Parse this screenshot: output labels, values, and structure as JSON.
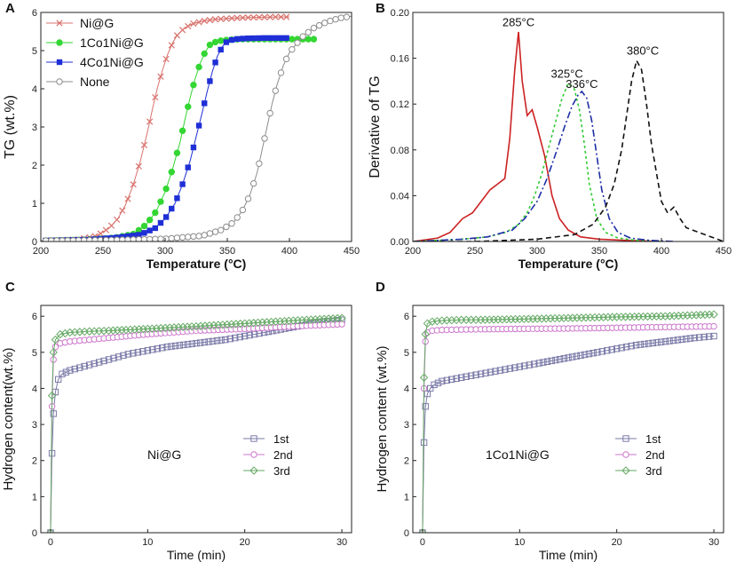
{
  "panels": [
    {
      "letter": "A",
      "type": "line",
      "xlabel": "Temperature (°C)",
      "ylabel": "TG (wt.%)",
      "xlim": [
        200,
        450
      ],
      "ylim": [
        0,
        6
      ],
      "xticks": [
        "200",
        "250",
        "300",
        "350",
        "400",
        "450"
      ],
      "yticks": [
        "0",
        "1",
        "2",
        "3",
        "4",
        "5",
        "6"
      ],
      "legend": {
        "position": "top-left"
      },
      "series": [
        {
          "name": "Ni@G",
          "color": "#d9736e",
          "marker": "x",
          "dash": "",
          "x": [
            200,
            230,
            245,
            255,
            262,
            268,
            274,
            280,
            286,
            290,
            294,
            298,
            302,
            306,
            310,
            316,
            322,
            330,
            340,
            355,
            370,
            390,
            400
          ],
          "y": [
            0.02,
            0.05,
            0.15,
            0.35,
            0.6,
            0.95,
            1.45,
            2.1,
            2.9,
            3.5,
            4.05,
            4.5,
            4.9,
            5.2,
            5.42,
            5.6,
            5.7,
            5.77,
            5.82,
            5.85,
            5.87,
            5.88,
            5.88
          ]
        },
        {
          "name": "1Co1Ni@G",
          "color": "#33d633",
          "marker": "circle",
          "dash": "",
          "x": [
            200,
            240,
            260,
            275,
            285,
            293,
            300,
            306,
            312,
            316,
            320,
            324,
            328,
            332,
            336,
            342,
            350,
            360,
            370,
            385,
            400,
            420
          ],
          "y": [
            0.02,
            0.05,
            0.1,
            0.2,
            0.45,
            0.8,
            1.3,
            1.9,
            2.6,
            3.2,
            3.75,
            4.25,
            4.65,
            4.95,
            5.15,
            5.25,
            5.28,
            5.3,
            5.3,
            5.3,
            5.3,
            5.3
          ]
        },
        {
          "name": "4Co1Ni@G",
          "color": "#1f2fd6",
          "marker": "square",
          "dash": "",
          "x": [
            200,
            240,
            260,
            280,
            292,
            300,
            308,
            314,
            320,
            325,
            330,
            334,
            338,
            342,
            346,
            350,
            356,
            365,
            380,
            400
          ],
          "y": [
            0.02,
            0.05,
            0.1,
            0.18,
            0.35,
            0.6,
            1.0,
            1.5,
            2.1,
            2.75,
            3.4,
            3.95,
            4.45,
            4.85,
            5.1,
            5.25,
            5.3,
            5.32,
            5.33,
            5.33
          ]
        },
        {
          "name": "None",
          "color": "#8c8c8c",
          "marker": "open-circle",
          "dash": "",
          "x": [
            200,
            260,
            300,
            330,
            345,
            355,
            362,
            368,
            374,
            378,
            382,
            386,
            390,
            395,
            400,
            410,
            420,
            430,
            440,
            450
          ],
          "y": [
            0.02,
            0.04,
            0.07,
            0.15,
            0.3,
            0.5,
            0.8,
            1.2,
            1.8,
            2.4,
            3.0,
            3.6,
            4.1,
            4.6,
            4.95,
            5.35,
            5.6,
            5.75,
            5.85,
            5.9
          ]
        }
      ]
    },
    {
      "letter": "B",
      "type": "line",
      "xlabel": "Temperature (°C)",
      "ylabel": "Derivative of TG",
      "xlim": [
        200,
        450
      ],
      "ylim": [
        0,
        0.2
      ],
      "xticks": [
        "200",
        "250",
        "300",
        "350",
        "400",
        "450"
      ],
      "yticks": [
        "0.00",
        "0.04",
        "0.08",
        "0.12",
        "0.16",
        "0.20"
      ],
      "annotations": [
        {
          "text": "285°C",
          "x": 285,
          "y": 0.188
        },
        {
          "text": "325°C",
          "x": 324,
          "y": 0.143
        },
        {
          "text": "336°C",
          "x": 336,
          "y": 0.134
        },
        {
          "text": "380°C",
          "x": 385,
          "y": 0.163
        }
      ],
      "series": [
        {
          "name": "Ni@G",
          "color": "#cc2222",
          "dash": "",
          "x": [
            200,
            220,
            230,
            240,
            248,
            255,
            262,
            268,
            274,
            278,
            282,
            285,
            288,
            292,
            296,
            300,
            306,
            312,
            318,
            325,
            335,
            350,
            370,
            400
          ],
          "y": [
            0.0,
            0.003,
            0.008,
            0.02,
            0.025,
            0.035,
            0.045,
            0.05,
            0.055,
            0.09,
            0.15,
            0.183,
            0.14,
            0.11,
            0.115,
            0.1,
            0.075,
            0.04,
            0.02,
            0.01,
            0.004,
            0.002,
            0.001,
            0.0
          ]
        },
        {
          "name": "1Co1Ni@G",
          "color": "#33cc33",
          "dash": "3,3",
          "x": [
            200,
            240,
            260,
            275,
            285,
            292,
            298,
            304,
            310,
            315,
            320,
            325,
            330,
            334,
            338,
            342,
            348,
            355,
            365,
            380,
            400
          ],
          "y": [
            0.0,
            0.002,
            0.004,
            0.008,
            0.015,
            0.025,
            0.04,
            0.06,
            0.085,
            0.105,
            0.125,
            0.138,
            0.133,
            0.115,
            0.085,
            0.05,
            0.02,
            0.008,
            0.003,
            0.001,
            0.0
          ]
        },
        {
          "name": "4Co1Ni@G",
          "color": "#1f2fa6",
          "dash": "8,3,2,3",
          "x": [
            200,
            240,
            260,
            280,
            290,
            300,
            308,
            316,
            322,
            328,
            333,
            336,
            340,
            344,
            348,
            352,
            358,
            365,
            375,
            390,
            410
          ],
          "y": [
            0.0,
            0.002,
            0.004,
            0.01,
            0.02,
            0.035,
            0.055,
            0.08,
            0.1,
            0.118,
            0.128,
            0.131,
            0.125,
            0.105,
            0.075,
            0.045,
            0.02,
            0.008,
            0.003,
            0.001,
            0.0
          ]
        },
        {
          "name": "None",
          "color": "#111111",
          "dash": "6,4",
          "x": [
            200,
            250,
            300,
            330,
            345,
            355,
            362,
            368,
            372,
            376,
            380,
            384,
            388,
            392,
            396,
            400,
            405,
            410,
            415,
            420,
            425,
            430,
            440,
            450
          ],
          "y": [
            0.0,
            0.0,
            0.002,
            0.006,
            0.015,
            0.03,
            0.05,
            0.08,
            0.11,
            0.14,
            0.158,
            0.15,
            0.12,
            0.085,
            0.06,
            0.035,
            0.025,
            0.03,
            0.02,
            0.012,
            0.01,
            0.008,
            0.004,
            0.0
          ]
        }
      ]
    },
    {
      "letter": "C",
      "type": "line",
      "xlabel": "Time (min)",
      "ylabel": "Hydrogen  content(wt.%)",
      "inset_label": "Ni@G",
      "xlim": [
        -1,
        31
      ],
      "ylim": [
        0,
        6.3
      ],
      "xticks": [
        "0",
        "10",
        "20",
        "30"
      ],
      "yticks": [
        "0",
        "1",
        "2",
        "3",
        "4",
        "5",
        "6"
      ],
      "legend": {
        "position": "right",
        "entries": [
          "1st",
          "2nd",
          "3rd"
        ]
      },
      "series": [
        {
          "name": "1st",
          "color": "#7a7aa8",
          "marker": "open-square",
          "x": [
            0,
            0.15,
            0.3,
            0.5,
            0.8,
            1.2,
            2,
            4,
            6,
            8,
            10,
            12,
            15,
            18,
            20,
            22,
            25,
            28,
            30
          ],
          "y": [
            0,
            2.2,
            3.3,
            3.9,
            4.25,
            4.4,
            4.5,
            4.65,
            4.8,
            4.95,
            5.05,
            5.15,
            5.25,
            5.35,
            5.45,
            5.55,
            5.7,
            5.85,
            5.9
          ]
        },
        {
          "name": "2nd",
          "color": "#cc77cc",
          "marker": "open-circle",
          "x": [
            0,
            0.15,
            0.3,
            0.5,
            1,
            2,
            4,
            6,
            10,
            15,
            20,
            25,
            30
          ],
          "y": [
            0,
            3.5,
            4.8,
            5.15,
            5.25,
            5.3,
            5.35,
            5.4,
            5.5,
            5.6,
            5.65,
            5.72,
            5.78
          ]
        },
        {
          "name": "3rd",
          "color": "#66aa66",
          "marker": "open-diamond",
          "x": [
            0,
            0.15,
            0.3,
            0.5,
            1,
            2,
            4,
            6,
            10,
            15,
            20,
            25,
            30
          ],
          "y": [
            0,
            3.8,
            5.0,
            5.35,
            5.5,
            5.55,
            5.58,
            5.6,
            5.65,
            5.72,
            5.8,
            5.88,
            5.95
          ]
        }
      ]
    },
    {
      "letter": "D",
      "type": "line",
      "xlabel": "Time (min)",
      "ylabel": "Hydrogen  content (wt.%)",
      "inset_label": "1Co1Ni@G",
      "xlim": [
        -1,
        31
      ],
      "ylim": [
        0,
        6.3
      ],
      "xticks": [
        "0",
        "10",
        "20",
        "30"
      ],
      "yticks": [
        "0",
        "1",
        "2",
        "3",
        "4",
        "5",
        "6"
      ],
      "legend": {
        "position": "right",
        "entries": [
          "1st",
          "2nd",
          "3rd"
        ]
      },
      "series": [
        {
          "name": "1st",
          "color": "#7a7aa8",
          "marker": "open-square",
          "x": [
            0,
            0.15,
            0.3,
            0.5,
            0.8,
            1.2,
            2,
            4,
            6,
            8,
            10,
            12,
            15,
            18,
            20,
            22,
            25,
            28,
            30
          ],
          "y": [
            0,
            2.5,
            3.5,
            3.85,
            4.0,
            4.1,
            4.2,
            4.3,
            4.4,
            4.5,
            4.6,
            4.7,
            4.85,
            5.0,
            5.1,
            5.2,
            5.3,
            5.4,
            5.45
          ]
        },
        {
          "name": "2nd",
          "color": "#cc77cc",
          "marker": "open-circle",
          "x": [
            0,
            0.15,
            0.3,
            0.5,
            1,
            2,
            4,
            6,
            10,
            15,
            20,
            25,
            30
          ],
          "y": [
            0,
            4.0,
            5.3,
            5.55,
            5.6,
            5.62,
            5.63,
            5.64,
            5.65,
            5.66,
            5.68,
            5.7,
            5.72
          ]
        },
        {
          "name": "3rd",
          "color": "#66aa66",
          "marker": "open-diamond",
          "x": [
            0,
            0.15,
            0.3,
            0.5,
            1,
            2,
            4,
            6,
            10,
            15,
            20,
            25,
            30
          ],
          "y": [
            0,
            4.3,
            5.5,
            5.8,
            5.85,
            5.88,
            5.9,
            5.9,
            5.92,
            5.95,
            5.98,
            6.0,
            6.05
          ]
        }
      ]
    }
  ]
}
